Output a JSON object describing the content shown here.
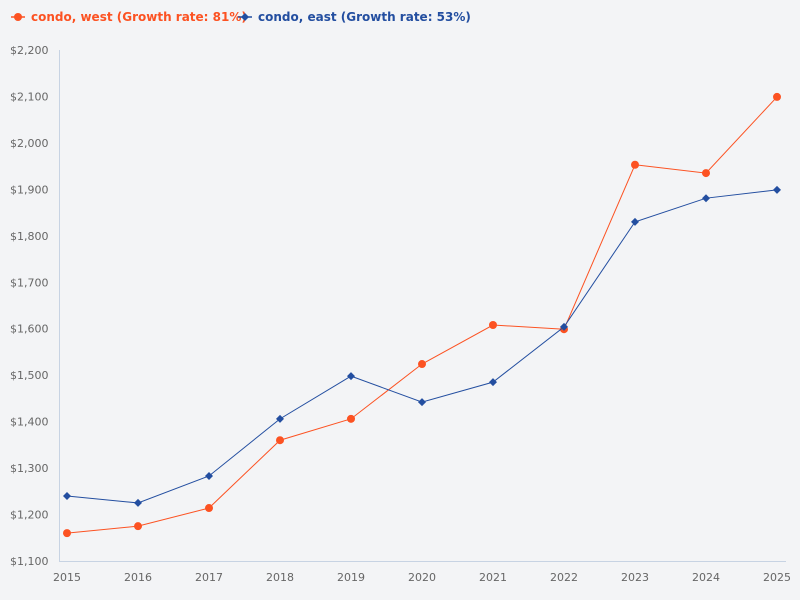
{
  "chart_data": {
    "type": "line",
    "title": "",
    "xlabel": "",
    "ylabel": "",
    "x": [
      2015,
      2016,
      2017,
      2018,
      2019,
      2020,
      2021,
      2022,
      2023,
      2024,
      2025
    ],
    "ylim": [
      1100,
      2200
    ],
    "ytick_step": 100,
    "y_tick_labels": [
      "$1,100",
      "$1,200",
      "$1,300",
      "$1,400",
      "$1,500",
      "$1,600",
      "$1,700",
      "$1,800",
      "$1,900",
      "$2,000",
      "$2,100",
      "$2,200"
    ],
    "x_tick_labels": [
      "2015",
      "2016",
      "2017",
      "2018",
      "2019",
      "2020",
      "2021",
      "2022",
      "2023",
      "2024",
      "2025"
    ],
    "grid": false,
    "legend_placement": "top-left",
    "series": [
      {
        "name": "condo, west (Growth rate: 81%)",
        "color": "#fc5222",
        "marker": "circle",
        "values": [
          1160,
          1175,
          1214,
          1360,
          1406,
          1524,
          1608,
          1599,
          1953,
          1935,
          2099
        ]
      },
      {
        "name": "condo, east (Growth rate: 53%)",
        "color": "#234ea0",
        "marker": "diamond",
        "values": [
          1240,
          1225,
          1283,
          1406,
          1498,
          1442,
          1485,
          1604,
          1830,
          1881,
          1899
        ]
      }
    ]
  }
}
